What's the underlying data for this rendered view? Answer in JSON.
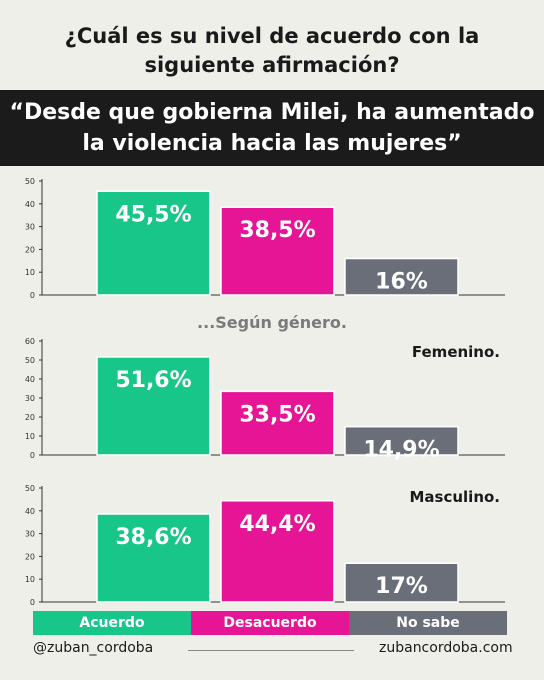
{
  "title": {
    "line1": "¿Cuál es su nivel de acuerdo con la",
    "line2": "siguiente afirmación?"
  },
  "quote": {
    "line1": "“Desde que gobierna Milei, ha aumentado",
    "line2": "la violencia hacia las mujeres”"
  },
  "subtitle": "...Según género.",
  "colors": {
    "acuerdo": "#19c68a",
    "desacuerdo": "#e51596",
    "no_sabe": "#6a6e78"
  },
  "legend": [
    {
      "label": "Acuerdo",
      "color": "#19c68a"
    },
    {
      "label": "Desacuerdo",
      "color": "#e51596"
    },
    {
      "label": "No sabe",
      "color": "#6a6e78"
    }
  ],
  "footer": {
    "handle": "@zuban_cordoba",
    "site": "zubancordoba.com"
  },
  "chart_data": [
    {
      "type": "bar",
      "title": "",
      "categories": [
        "Acuerdo",
        "Desacuerdo",
        "No sabe"
      ],
      "values": [
        45.5,
        38.5,
        16
      ],
      "labels": [
        "45,5%",
        "38,5%",
        "16%"
      ],
      "ylim": [
        0,
        50
      ],
      "yticks": [
        0,
        10,
        20,
        30,
        40,
        50
      ],
      "grid": false
    },
    {
      "type": "bar",
      "title": "Femenino.",
      "categories": [
        "Acuerdo",
        "Desacuerdo",
        "No sabe"
      ],
      "values": [
        51.6,
        33.5,
        14.9
      ],
      "labels": [
        "51,6%",
        "33,5%",
        "14,9%"
      ],
      "ylim": [
        0,
        60
      ],
      "yticks": [
        0,
        10,
        20,
        30,
        40,
        50,
        60
      ],
      "grid": false
    },
    {
      "type": "bar",
      "title": "Masculino.",
      "categories": [
        "Acuerdo",
        "Desacuerdo",
        "No sabe"
      ],
      "values": [
        38.6,
        44.4,
        17
      ],
      "labels": [
        "38,6%",
        "44,4%",
        "17%"
      ],
      "ylim": [
        0,
        50
      ],
      "yticks": [
        0,
        10,
        20,
        30,
        40,
        50
      ],
      "grid": false
    }
  ]
}
